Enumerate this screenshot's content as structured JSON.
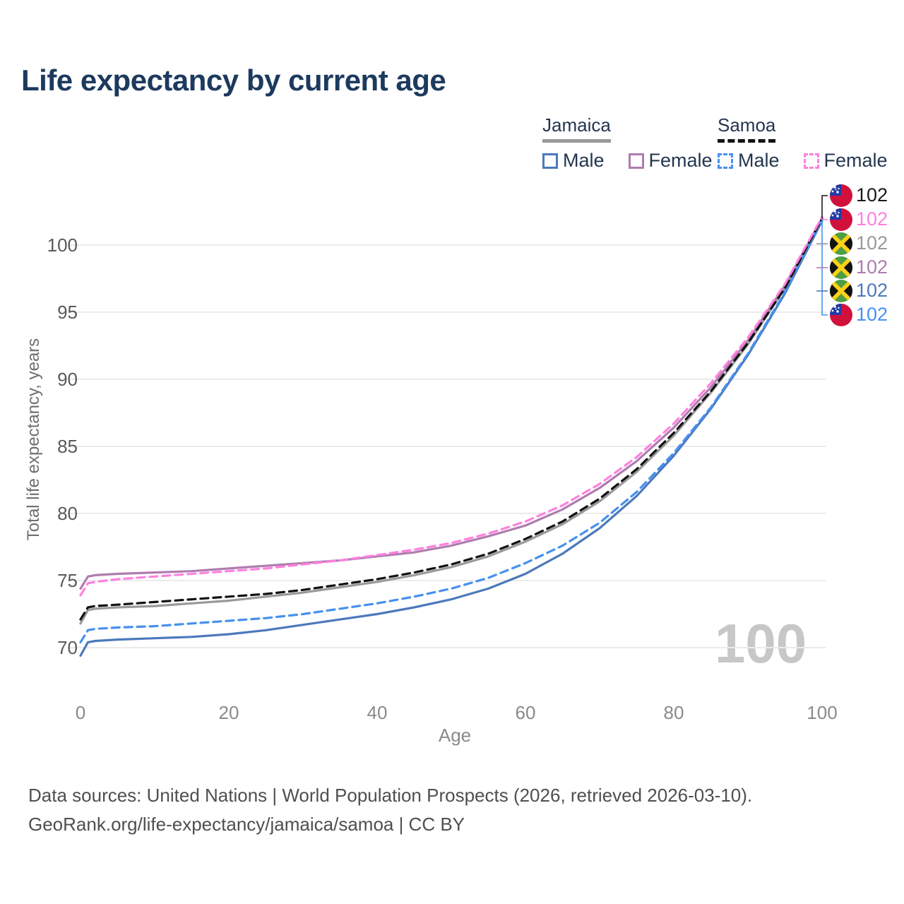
{
  "title": "Life expectancy by current age",
  "legend": {
    "groups": [
      {
        "country": "Jamaica",
        "underline_style": "solid",
        "underline_color": "#999999",
        "items": [
          {
            "label": "Male",
            "color": "#4c79bb",
            "dashed": false
          },
          {
            "label": "Female",
            "color": "#b07cae",
            "dashed": false
          }
        ]
      },
      {
        "country": "Samoa",
        "underline_style": "dashed",
        "underline_color": "#121212",
        "items": [
          {
            "label": "Male",
            "color": "#4690ef",
            "dashed": true
          },
          {
            "label": "Female",
            "color": "#ff80df",
            "dashed": true
          }
        ]
      }
    ]
  },
  "chart_data": {
    "type": "line",
    "title": "Life expectancy by current age",
    "xlabel": "Age",
    "ylabel": "Total life expectancy, years",
    "xlim": [
      0,
      100
    ],
    "ylim": [
      70,
      100
    ],
    "grid": "horizontal",
    "x_tick_labels": [
      "0",
      "20",
      "40",
      "60",
      "80",
      "100"
    ],
    "y_tick_labels": [
      "100",
      "95",
      "90",
      "85",
      "80",
      "75",
      "70"
    ],
    "y_gridlines": [
      100,
      95,
      90,
      85,
      80,
      75,
      70
    ],
    "watermark": "100",
    "ages": [
      0,
      1,
      2,
      5,
      10,
      15,
      20,
      25,
      30,
      35,
      40,
      45,
      50,
      55,
      60,
      65,
      70,
      75,
      80,
      85,
      90,
      95,
      100
    ],
    "series": [
      {
        "name": "Jamaica Male",
        "color": "#4c79bb",
        "dashed": false,
        "values": [
          69.4,
          70.4,
          70.5,
          70.6,
          70.7,
          70.8,
          71.0,
          71.3,
          71.7,
          72.1,
          72.5,
          73.0,
          73.6,
          74.4,
          75.5,
          77.0,
          78.9,
          81.3,
          84.3,
          87.8,
          91.8,
          96.4,
          101.8
        ]
      },
      {
        "name": "Jamaica Overall",
        "color": "#999999",
        "dashed": false,
        "values": [
          71.8,
          72.8,
          72.9,
          73.0,
          73.1,
          73.3,
          73.5,
          73.8,
          74.1,
          74.5,
          74.9,
          75.4,
          76.0,
          76.8,
          77.9,
          79.2,
          80.9,
          83.1,
          85.8,
          89.0,
          92.6,
          96.8,
          101.9
        ]
      },
      {
        "name": "Jamaica Female",
        "color": "#b07cae",
        "dashed": false,
        "values": [
          74.4,
          75.3,
          75.4,
          75.5,
          75.6,
          75.7,
          75.9,
          76.1,
          76.3,
          76.5,
          76.8,
          77.1,
          77.6,
          78.3,
          79.1,
          80.3,
          81.9,
          83.9,
          86.4,
          89.4,
          92.9,
          97.0,
          102.0
        ]
      },
      {
        "name": "Samoa Male",
        "color": "#4690ef",
        "dashed": true,
        "values": [
          70.4,
          71.3,
          71.4,
          71.5,
          71.6,
          71.8,
          72.0,
          72.2,
          72.5,
          72.9,
          73.3,
          73.8,
          74.4,
          75.2,
          76.3,
          77.6,
          79.3,
          81.6,
          84.5,
          87.9,
          91.9,
          96.5,
          101.9
        ]
      },
      {
        "name": "Samoa Overall",
        "color": "#121212",
        "dashed": true,
        "values": [
          72.1,
          73.0,
          73.1,
          73.2,
          73.4,
          73.6,
          73.8,
          74.0,
          74.3,
          74.7,
          75.1,
          75.6,
          76.2,
          77.0,
          78.1,
          79.4,
          81.1,
          83.3,
          86.0,
          89.1,
          92.7,
          96.8,
          102.0
        ]
      },
      {
        "name": "Samoa Female",
        "color": "#ff80df",
        "dashed": true,
        "values": [
          73.9,
          74.8,
          74.9,
          75.1,
          75.3,
          75.5,
          75.7,
          75.9,
          76.2,
          76.5,
          76.9,
          77.3,
          77.8,
          78.5,
          79.4,
          80.6,
          82.2,
          84.2,
          86.7,
          89.7,
          93.1,
          97.1,
          102.1
        ]
      }
    ],
    "end_labels": [
      {
        "flag": "samoa",
        "value": "102",
        "color": "#1a1a1a",
        "series": "Samoa Overall"
      },
      {
        "flag": "samoa",
        "value": "102",
        "color": "#ff80df",
        "series": "Samoa Female"
      },
      {
        "flag": "jamaica",
        "value": "102",
        "color": "#9a9a9a",
        "series": "Jamaica Overall"
      },
      {
        "flag": "jamaica",
        "value": "102",
        "color": "#b07cae",
        "series": "Jamaica Female"
      },
      {
        "flag": "jamaica",
        "value": "102",
        "color": "#4c79bb",
        "series": "Jamaica Male"
      },
      {
        "flag": "samoa",
        "value": "102",
        "color": "#4690ef",
        "series": "Samoa Male"
      }
    ]
  },
  "footer": {
    "line1": "Data sources: United Nations | World Population Prospects (2026, retrieved 2026-03-10).",
    "line2": "GeoRank.org/life-expectancy/jamaica/samoa | CC BY"
  }
}
